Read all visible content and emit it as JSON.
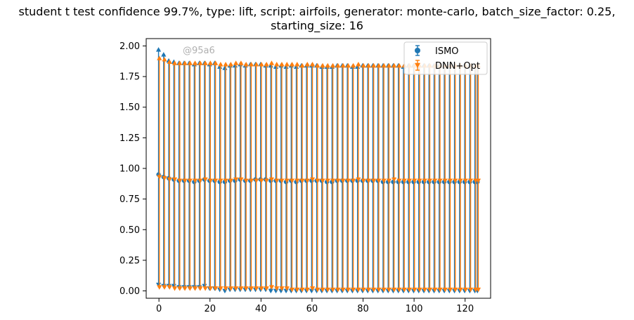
{
  "chart_data": {
    "type": "scatter",
    "title_lines": [
      "student t test confidence 99.7%, type: lift, script: airfoils, generator: monte-carlo, batch_size_factor: 0.25,",
      "starting_size: 16"
    ],
    "watermark": "@95a6",
    "xlabel": "",
    "ylabel": "",
    "xlim": [
      -5,
      130
    ],
    "ylim": [
      -0.06,
      2.06
    ],
    "x_ticks": [
      0,
      20,
      40,
      60,
      80,
      100,
      120
    ],
    "x_tick_labels": [
      "0",
      "20",
      "40",
      "60",
      "80",
      "100",
      "120"
    ],
    "y_ticks": [
      0.0,
      0.25,
      0.5,
      0.75,
      1.0,
      1.25,
      1.5,
      1.75,
      2.0
    ],
    "y_tick_labels": [
      "0.00",
      "0.25",
      "0.50",
      "0.75",
      "1.00",
      "1.25",
      "1.50",
      "1.75",
      "2.00"
    ],
    "grid": false,
    "legend_position": "top-right",
    "x": [
      0,
      2,
      4,
      6,
      8,
      10,
      12,
      14,
      16,
      18,
      20,
      22,
      24,
      26,
      28,
      30,
      32,
      34,
      36,
      38,
      40,
      42,
      44,
      46,
      48,
      50,
      52,
      54,
      56,
      58,
      60,
      62,
      64,
      66,
      68,
      70,
      72,
      74,
      76,
      78,
      80,
      82,
      84,
      86,
      88,
      90,
      92,
      94,
      96,
      98,
      100,
      102,
      104,
      106,
      108,
      110,
      112,
      114,
      116,
      118,
      120,
      122,
      124,
      125
    ],
    "series": [
      {
        "name": "ISMO",
        "color": "#1f77b4",
        "marker": "circle",
        "mean": [
          0.95,
          0.93,
          0.92,
          0.91,
          0.9,
          0.9,
          0.9,
          0.89,
          0.9,
          0.91,
          0.9,
          0.9,
          0.89,
          0.89,
          0.9,
          0.9,
          0.91,
          0.9,
          0.9,
          0.91,
          0.91,
          0.91,
          0.9,
          0.9,
          0.9,
          0.89,
          0.9,
          0.89,
          0.9,
          0.9,
          0.9,
          0.9,
          0.9,
          0.89,
          0.89,
          0.9,
          0.9,
          0.9,
          0.9,
          0.9,
          0.9,
          0.9,
          0.9,
          0.9,
          0.89,
          0.89,
          0.89,
          0.89,
          0.89,
          0.89,
          0.89,
          0.89,
          0.89,
          0.89,
          0.89,
          0.89,
          0.89,
          0.89,
          0.89,
          0.89,
          0.89,
          0.89,
          0.89,
          0.89
        ],
        "upper": [
          1.97,
          1.93,
          1.88,
          1.87,
          1.86,
          1.86,
          1.86,
          1.85,
          1.86,
          1.86,
          1.85,
          1.86,
          1.83,
          1.82,
          1.84,
          1.84,
          1.85,
          1.84,
          1.85,
          1.85,
          1.85,
          1.84,
          1.84,
          1.83,
          1.84,
          1.83,
          1.84,
          1.83,
          1.84,
          1.84,
          1.84,
          1.84,
          1.83,
          1.83,
          1.83,
          1.84,
          1.84,
          1.84,
          1.83,
          1.83,
          1.84,
          1.84,
          1.84,
          1.84,
          1.84,
          1.84,
          1.84,
          1.84,
          1.83,
          1.84,
          1.84,
          1.84,
          1.84,
          1.84,
          1.84,
          1.84,
          1.84,
          1.84,
          1.84,
          1.84,
          1.84,
          1.84,
          1.84,
          1.84
        ],
        "lower": [
          0.05,
          0.04,
          0.04,
          0.04,
          0.03,
          0.03,
          0.03,
          0.03,
          0.03,
          0.04,
          0.02,
          0.02,
          0.01,
          0.0,
          0.01,
          0.01,
          0.01,
          0.01,
          0.01,
          0.01,
          0.01,
          0.01,
          0.0,
          0.0,
          0.0,
          0.0,
          0.0,
          0.0,
          0.0,
          0.0,
          0.0,
          0.0,
          0.0,
          0.0,
          0.0,
          0.0,
          0.0,
          0.0,
          0.0,
          0.0,
          0.0,
          0.0,
          0.0,
          0.0,
          0.0,
          0.0,
          0.0,
          0.0,
          0.0,
          0.0,
          0.0,
          0.0,
          0.0,
          0.0,
          0.0,
          0.0,
          0.0,
          0.0,
          0.0,
          0.0,
          0.0,
          0.0,
          0.0,
          0.0
        ]
      },
      {
        "name": "DNN+Opt",
        "color": "#ff7f0e",
        "marker": "triangle-down",
        "mean": [
          0.93,
          0.92,
          0.91,
          0.91,
          0.9,
          0.9,
          0.9,
          0.9,
          0.9,
          0.91,
          0.9,
          0.9,
          0.9,
          0.9,
          0.9,
          0.91,
          0.91,
          0.9,
          0.9,
          0.9,
          0.9,
          0.9,
          0.91,
          0.9,
          0.9,
          0.9,
          0.9,
          0.9,
          0.9,
          0.9,
          0.91,
          0.9,
          0.9,
          0.9,
          0.9,
          0.9,
          0.9,
          0.9,
          0.9,
          0.91,
          0.9,
          0.9,
          0.9,
          0.9,
          0.9,
          0.9,
          0.91,
          0.9,
          0.9,
          0.9,
          0.9,
          0.9,
          0.9,
          0.9,
          0.9,
          0.9,
          0.9,
          0.9,
          0.9,
          0.9,
          0.9,
          0.9,
          0.9,
          0.9
        ],
        "upper": [
          1.9,
          1.89,
          1.87,
          1.86,
          1.86,
          1.86,
          1.86,
          1.86,
          1.86,
          1.86,
          1.86,
          1.86,
          1.85,
          1.85,
          1.85,
          1.86,
          1.86,
          1.85,
          1.85,
          1.85,
          1.85,
          1.85,
          1.86,
          1.85,
          1.85,
          1.85,
          1.85,
          1.85,
          1.84,
          1.85,
          1.85,
          1.84,
          1.84,
          1.84,
          1.84,
          1.84,
          1.84,
          1.84,
          1.84,
          1.85,
          1.84,
          1.84,
          1.84,
          1.84,
          1.84,
          1.84,
          1.84,
          1.84,
          1.84,
          1.84,
          1.84,
          1.84,
          1.84,
          1.84,
          1.84,
          1.84,
          1.84,
          1.84,
          1.84,
          1.84,
          1.84,
          1.84,
          1.84,
          1.84
        ],
        "lower": [
          0.03,
          0.03,
          0.03,
          0.02,
          0.02,
          0.02,
          0.02,
          0.02,
          0.02,
          0.02,
          0.02,
          0.02,
          0.02,
          0.02,
          0.02,
          0.02,
          0.02,
          0.02,
          0.02,
          0.02,
          0.02,
          0.02,
          0.03,
          0.02,
          0.02,
          0.02,
          0.01,
          0.01,
          0.01,
          0.01,
          0.02,
          0.01,
          0.01,
          0.01,
          0.01,
          0.01,
          0.01,
          0.01,
          0.01,
          0.01,
          0.01,
          0.01,
          0.01,
          0.01,
          0.01,
          0.01,
          0.01,
          0.01,
          0.01,
          0.01,
          0.01,
          0.01,
          0.01,
          0.01,
          0.01,
          0.01,
          0.01,
          0.01,
          0.01,
          0.01,
          0.01,
          0.01,
          0.01,
          0.01
        ]
      }
    ]
  }
}
